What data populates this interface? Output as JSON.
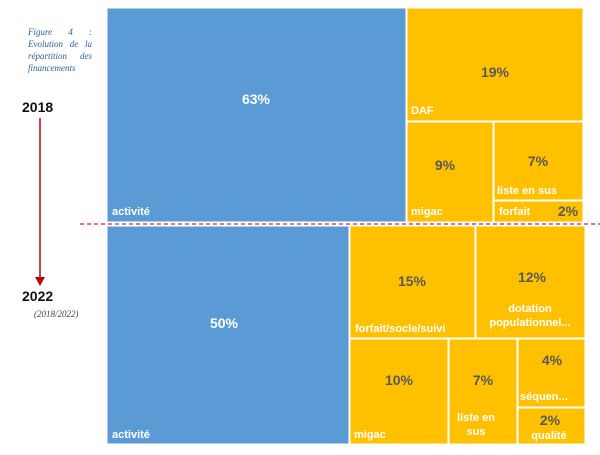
{
  "caption": "Figure 4 : Evolution de la répartition des financements",
  "year_start": "2018",
  "year_end": "2022",
  "year_end_note": "(2018/2022)",
  "colors": {
    "activite": "#5b9bd5",
    "other": "#ffc000",
    "divider": "#e02020",
    "arrow": "#c00000",
    "dark_text": "#595959"
  },
  "chart_data": {
    "type": "treemap",
    "panels": [
      {
        "year": "2018",
        "items": [
          {
            "label": "activité",
            "value": "63%",
            "group": "activite"
          },
          {
            "label": "DAF",
            "value": "19%",
            "group": "other"
          },
          {
            "label": "migac",
            "value": "9%",
            "group": "other"
          },
          {
            "label": "liste en sus",
            "value": "7%",
            "group": "other"
          },
          {
            "label": "forfait",
            "value": "2%",
            "group": "other"
          }
        ]
      },
      {
        "year": "2022",
        "items": [
          {
            "label": "activité",
            "value": "50%",
            "group": "activite"
          },
          {
            "label": "forfait/socle/suivi",
            "value": "15%",
            "group": "other"
          },
          {
            "label": "dotation populationnel...",
            "value": "12%",
            "group": "other"
          },
          {
            "label": "migac",
            "value": "10%",
            "group": "other"
          },
          {
            "label": "liste en sus",
            "value": "7%",
            "group": "other"
          },
          {
            "label": "séquen...",
            "value": "4%",
            "group": "other"
          },
          {
            "label": "qualité",
            "value": "2%",
            "group": "other"
          }
        ]
      }
    ]
  }
}
